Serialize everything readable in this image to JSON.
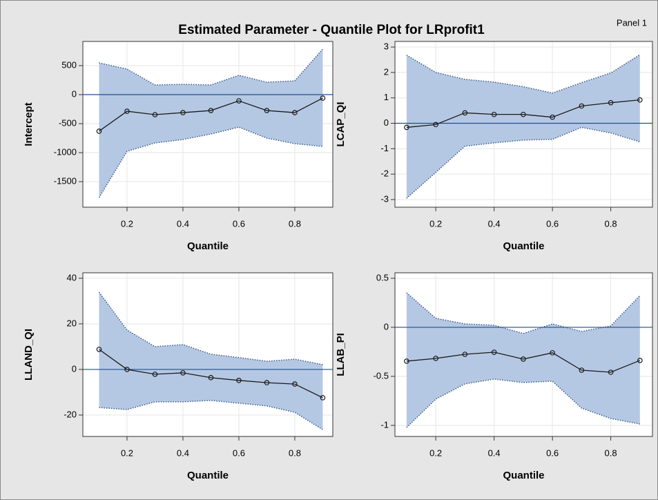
{
  "title": "Estimated Parameter - Quantile Plot for LRprofit1",
  "panel_label": "Panel 1",
  "chart_data": [
    {
      "type": "line",
      "xlabel": "Quantile",
      "ylabel": "Intercept",
      "x": [
        0.1,
        0.2,
        0.3,
        0.4,
        0.5,
        0.6,
        0.7,
        0.8,
        0.9
      ],
      "values": [
        -630,
        -286,
        -345,
        -310,
        -274,
        -107,
        -274,
        -310,
        -60
      ],
      "upper": [
        548,
        440,
        167,
        178,
        167,
        333,
        214,
        238,
        786
      ],
      "lower": [
        -1774,
        -976,
        -833,
        -774,
        -679,
        -560,
        -750,
        -845,
        -893
      ],
      "reference_line": 0,
      "xlim": [
        0.042,
        0.936
      ],
      "xticks": [
        0.2,
        0.4,
        0.6,
        0.8
      ],
      "ylim": [
        -1940,
        917
      ],
      "yticks": [
        500,
        0,
        -500,
        -1000,
        -1500
      ],
      "grid": true,
      "color": "#1a1a1a",
      "band_color": "#b5c8e3",
      "band_edge_color": "#3c5a8c",
      "reference_color": "#1f4e8c"
    },
    {
      "type": "line",
      "xlabel": "Quantile",
      "ylabel": "LCAP_QI",
      "x": [
        0.1,
        0.2,
        0.3,
        0.4,
        0.5,
        0.6,
        0.7,
        0.8,
        0.9
      ],
      "values": [
        -0.16,
        -0.05,
        0.41,
        0.35,
        0.35,
        0.24,
        0.68,
        0.81,
        0.92
      ],
      "upper": [
        2.68,
        2.0,
        1.73,
        1.62,
        1.44,
        1.19,
        1.6,
        1.98,
        2.7
      ],
      "lower": [
        -2.95,
        -1.93,
        -0.9,
        -0.77,
        -0.66,
        -0.63,
        -0.16,
        -0.38,
        -0.73
      ],
      "reference_line": 0,
      "xlim": [
        0.06,
        0.943
      ],
      "xticks": [
        0.2,
        0.4,
        0.6,
        0.8
      ],
      "ylim": [
        -3.3,
        3.22
      ],
      "yticks": [
        3,
        2,
        1,
        0,
        -1,
        -2,
        -3
      ],
      "grid": true,
      "color": "#1a1a1a",
      "band_color": "#b5c8e3",
      "band_edge_color": "#3c5a8c",
      "reference_color": "#1f4e8c"
    },
    {
      "type": "line",
      "xlabel": "Quantile",
      "ylabel": "LLAND_QI",
      "x": [
        0.1,
        0.2,
        0.3,
        0.4,
        0.5,
        0.6,
        0.7,
        0.8,
        0.9
      ],
      "values": [
        8.8,
        0,
        -2.1,
        -1.5,
        -3.6,
        -4.8,
        -5.8,
        -6.4,
        -12.4
      ],
      "upper": [
        33.9,
        17.3,
        10,
        10.9,
        6.7,
        5.2,
        3.6,
        4.5,
        2.1
      ],
      "lower": [
        -16.7,
        -17.6,
        -14.2,
        -14.2,
        -13.6,
        -14.8,
        -16,
        -18.8,
        -26.4
      ],
      "reference_line": 0,
      "xlim": [
        0.042,
        0.936
      ],
      "xticks": [
        0.2,
        0.4,
        0.6,
        0.8
      ],
      "ylim": [
        -29.4,
        42.4
      ],
      "yticks": [
        40,
        20,
        0,
        -20
      ],
      "grid": true,
      "color": "#1a1a1a",
      "band_color": "#b5c8e3",
      "band_edge_color": "#3c5a8c",
      "reference_color": "#1f4e8c"
    },
    {
      "type": "line",
      "xlabel": "Quantile",
      "ylabel": "LLAB_PI",
      "x": [
        0.1,
        0.2,
        0.3,
        0.4,
        0.5,
        0.6,
        0.7,
        0.8,
        0.9
      ],
      "values": [
        -0.345,
        -0.317,
        -0.275,
        -0.254,
        -0.324,
        -0.26,
        -0.437,
        -0.458,
        -0.338
      ],
      "upper": [
        0.352,
        0.092,
        0.035,
        0.021,
        -0.063,
        0.035,
        -0.042,
        0.014,
        0.324
      ],
      "lower": [
        -1.021,
        -0.732,
        -0.577,
        -0.528,
        -0.563,
        -0.549,
        -0.824,
        -0.93,
        -0.986
      ],
      "reference_line": 0,
      "xlim": [
        0.06,
        0.943
      ],
      "xticks": [
        0.2,
        0.4,
        0.6,
        0.8
      ],
      "ylim": [
        -1.113,
        0.556
      ],
      "yticks": [
        0.5,
        0,
        -0.5,
        -1
      ],
      "grid": true,
      "color": "#1a1a1a",
      "band_color": "#b5c8e3",
      "band_edge_color": "#3c5a8c",
      "reference_color": "#1f4e8c"
    }
  ]
}
